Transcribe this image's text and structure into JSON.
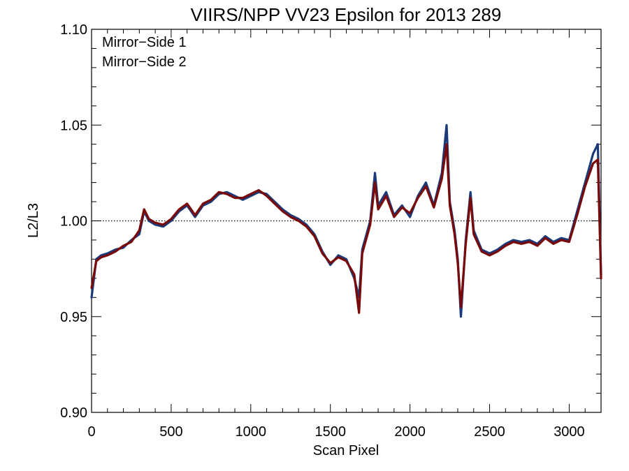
{
  "chart_data": {
    "type": "line",
    "title": "VIIRS/NPP VV23 Epsilon for 2013 289",
    "xlabel": "Scan Pixel",
    "ylabel": "L2/L3",
    "xlim": [
      0,
      3200
    ],
    "ylim": [
      0.9,
      1.1
    ],
    "xticks": [
      0,
      500,
      1000,
      1500,
      2000,
      2500,
      3000
    ],
    "xtick_labels": [
      "0",
      "500",
      "1000",
      "1500",
      "2000",
      "2500",
      "3000"
    ],
    "yticks": [
      0.9,
      0.95,
      1.0,
      1.05,
      1.1
    ],
    "ytick_labels": [
      "0.90",
      "0.95",
      "1.00",
      "1.05",
      "1.10"
    ],
    "reference_line": {
      "y": 1.0,
      "style": "dotted"
    },
    "legend_position": "top-left",
    "series": [
      {
        "name": "Mirror−Side 1",
        "color": "#1a3a7a",
        "x": [
          0,
          30,
          60,
          100,
          150,
          200,
          250,
          300,
          330,
          360,
          400,
          450,
          500,
          550,
          600,
          650,
          700,
          750,
          800,
          850,
          900,
          950,
          1000,
          1050,
          1100,
          1150,
          1200,
          1250,
          1300,
          1350,
          1400,
          1450,
          1500,
          1550,
          1600,
          1650,
          1680,
          1700,
          1750,
          1780,
          1800,
          1850,
          1900,
          1950,
          2000,
          2050,
          2100,
          2150,
          2200,
          2230,
          2250,
          2280,
          2300,
          2320,
          2350,
          2380,
          2400,
          2450,
          2500,
          2550,
          2600,
          2650,
          2700,
          2750,
          2800,
          2850,
          2900,
          2950,
          3000,
          3050,
          3100,
          3150,
          3180,
          3200
        ],
        "y": [
          0.96,
          0.98,
          0.982,
          0.983,
          0.985,
          0.986,
          0.99,
          0.993,
          1.005,
          1.0,
          0.998,
          0.997,
          1.0,
          1.005,
          1.008,
          1.002,
          1.008,
          1.01,
          1.014,
          1.015,
          1.013,
          1.011,
          1.013,
          1.015,
          1.014,
          1.01,
          1.006,
          1.003,
          1.001,
          0.998,
          0.993,
          0.984,
          0.977,
          0.982,
          0.98,
          0.97,
          0.96,
          0.985,
          1.0,
          1.025,
          1.008,
          1.015,
          1.003,
          1.008,
          1.002,
          1.013,
          1.02,
          1.008,
          1.025,
          1.05,
          1.01,
          0.995,
          0.98,
          0.95,
          0.99,
          1.015,
          0.995,
          0.985,
          0.983,
          0.985,
          0.988,
          0.99,
          0.989,
          0.99,
          0.988,
          0.992,
          0.989,
          0.991,
          0.99,
          1.005,
          1.02,
          1.035,
          1.04,
          0.972
        ]
      },
      {
        "name": "Mirror−Side 2",
        "color": "#7a0a0a",
        "x": [
          0,
          30,
          60,
          100,
          150,
          200,
          250,
          300,
          330,
          360,
          400,
          450,
          500,
          550,
          600,
          650,
          700,
          750,
          800,
          850,
          900,
          950,
          1000,
          1050,
          1100,
          1150,
          1200,
          1250,
          1300,
          1350,
          1400,
          1450,
          1500,
          1550,
          1600,
          1650,
          1680,
          1700,
          1750,
          1780,
          1800,
          1850,
          1900,
          1950,
          2000,
          2050,
          2100,
          2150,
          2200,
          2230,
          2250,
          2280,
          2300,
          2320,
          2350,
          2380,
          2400,
          2450,
          2500,
          2550,
          2600,
          2650,
          2700,
          2750,
          2800,
          2850,
          2900,
          2950,
          3000,
          3050,
          3100,
          3150,
          3180,
          3200
        ],
        "y": [
          0.965,
          0.979,
          0.981,
          0.982,
          0.984,
          0.987,
          0.989,
          0.995,
          1.006,
          1.001,
          0.999,
          0.998,
          1.001,
          1.006,
          1.009,
          1.003,
          1.009,
          1.011,
          1.015,
          1.014,
          1.012,
          1.012,
          1.014,
          1.016,
          1.013,
          1.009,
          1.005,
          1.002,
          1.0,
          0.997,
          0.992,
          0.983,
          0.978,
          0.981,
          0.979,
          0.972,
          0.952,
          0.983,
          0.998,
          1.02,
          1.006,
          1.013,
          1.002,
          1.007,
          1.004,
          1.012,
          1.018,
          1.007,
          1.022,
          1.04,
          1.008,
          0.993,
          0.978,
          0.955,
          0.988,
          1.012,
          0.993,
          0.984,
          0.982,
          0.984,
          0.987,
          0.989,
          0.988,
          0.989,
          0.987,
          0.991,
          0.988,
          0.99,
          0.989,
          1.003,
          1.018,
          1.03,
          1.032,
          0.97
        ]
      }
    ]
  }
}
